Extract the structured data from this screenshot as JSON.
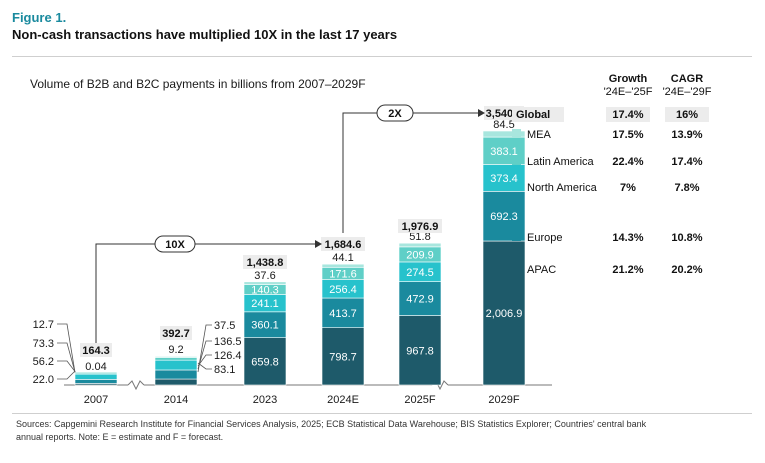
{
  "figure": {
    "label": "Figure 1.",
    "title": "Non-cash transactions have multiplied 10X in the last 17 years",
    "sources_line1": "Sources: Capgemini Research Institute for Financial Services Analysis, 2025; ECB Statistical Data Warehouse; BIS Statistics Explorer; Countries' central bank",
    "sources_line2": "annual reports. Note: E = estimate and F = forecast."
  },
  "chart_data": {
    "type": "bar",
    "stacked": true,
    "title": "Volume of B2B and B2C payments in billions from 2007–2029F",
    "categories": [
      "2007",
      "2014",
      "2023",
      "2024E",
      "2025F",
      "2029F"
    ],
    "totals": [
      "164.3",
      "392.7",
      "1,438.8",
      "1,684.6",
      "1,976.9",
      "3,540.3"
    ],
    "series": [
      {
        "name": "APAC",
        "color": "#1e5a6a",
        "values": [
          22.0,
          83.1,
          659.8,
          798.7,
          967.8,
          2006.9
        ],
        "labels": [
          "22.0",
          "83.1",
          "659.8",
          "798.7",
          "967.8",
          "2,006.9"
        ]
      },
      {
        "name": "Europe",
        "color": "#1a8a9e",
        "values": [
          56.2,
          126.4,
          360.1,
          413.7,
          472.9,
          692.3
        ],
        "labels": [
          "56.2",
          "126.4",
          "360.1",
          "413.7",
          "472.9",
          "692.3"
        ]
      },
      {
        "name": "North America",
        "color": "#27c2cc",
        "values": [
          73.3,
          136.5,
          241.1,
          256.4,
          274.5,
          373.4
        ],
        "labels": [
          "73.3",
          "136.5",
          "241.1",
          "256.4",
          "274.5",
          "373.4"
        ]
      },
      {
        "name": "Latin America",
        "color": "#5fcfc7",
        "values": [
          12.7,
          37.5,
          140.3,
          171.6,
          209.9,
          383.1
        ],
        "labels": [
          "12.7",
          "37.5",
          "140.3",
          "171.6",
          "209.9",
          "383.1"
        ]
      },
      {
        "name": "MEA",
        "color": "#a8e6de",
        "values": [
          0.04,
          9.2,
          37.6,
          44.1,
          51.8,
          84.5
        ],
        "labels": [
          "0.04",
          "9.2",
          "37.6",
          "44.1",
          "51.8",
          "84.5"
        ]
      }
    ],
    "annotations": [
      {
        "label": "10X",
        "from": "2007",
        "to": "2024E"
      },
      {
        "label": "2X",
        "from": "2024E",
        "to": "2029F"
      }
    ],
    "table": {
      "headers": [
        {
          "line1": "Growth",
          "line2": "'24E–'25F"
        },
        {
          "line1": "CAGR",
          "line2": "'24E–'29F"
        }
      ],
      "rows": [
        {
          "name": "Global",
          "growth": "17.4%",
          "cagr": "16%"
        },
        {
          "name": "MEA",
          "growth": "17.5%",
          "cagr": "13.9%"
        },
        {
          "name": "Latin America",
          "growth": "22.4%",
          "cagr": "17.4%"
        },
        {
          "name": "North America",
          "growth": "7%",
          "cagr": "7.8%"
        },
        {
          "name": "Europe",
          "growth": "14.3%",
          "cagr": "10.8%"
        },
        {
          "name": "APAC",
          "growth": "21.2%",
          "cagr": "20.2%"
        }
      ]
    }
  }
}
